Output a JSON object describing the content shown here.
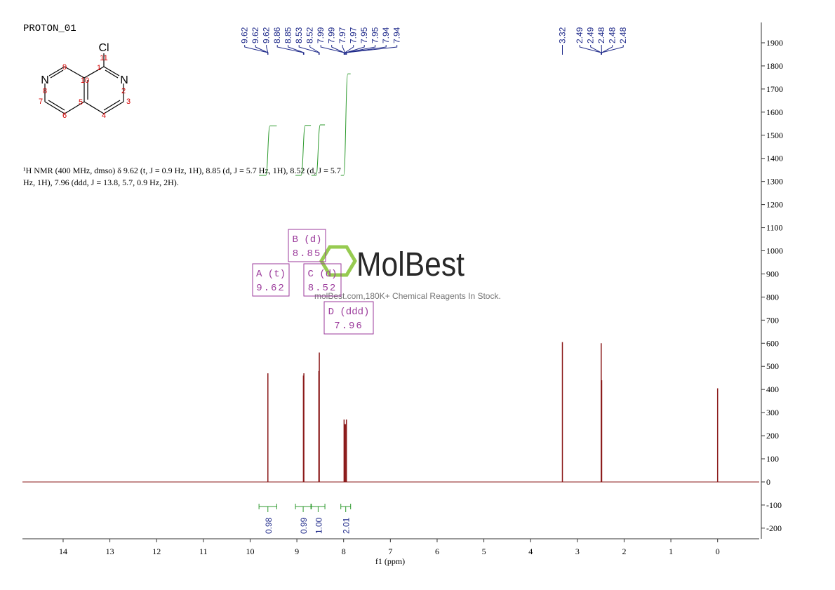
{
  "chart_data": {
    "type": "nmr",
    "title": "PROTON_01",
    "xlabel": "f1 (ppm)",
    "xlim": [
      14.87,
      -0.89
    ],
    "xticks": [
      14,
      13,
      12,
      11,
      10,
      9,
      8,
      7,
      6,
      5,
      4,
      3,
      2,
      1,
      0
    ],
    "ylim": [
      -246,
      1988
    ],
    "yticks": [
      -200,
      -100,
      0,
      100,
      200,
      300,
      400,
      500,
      600,
      700,
      800,
      900,
      1000,
      1100,
      1200,
      1300,
      1400,
      1500,
      1600,
      1700,
      1800,
      1900
    ],
    "spectrum": {
      "color": "#8b1a1a",
      "x": [
        9.62,
        8.86,
        8.85,
        8.53,
        8.52,
        7.99,
        7.97,
        7.95,
        7.94,
        3.32,
        2.49,
        2.48,
        0.0
      ],
      "values": [
        470,
        460,
        470,
        480,
        560,
        270,
        250,
        250,
        270,
        605,
        600,
        440,
        405
      ]
    },
    "peak_picks": [
      9.62,
      9.62,
      9.62,
      8.86,
      8.85,
      8.53,
      8.52,
      7.99,
      7.99,
      7.97,
      7.97,
      7.95,
      7.95,
      7.94,
      7.94,
      3.32,
      2.49,
      2.49,
      2.48,
      2.48,
      2.48
    ],
    "peak_pick_color": "#1f2a8a",
    "integrals": {
      "color": "#2e9a2e",
      "ranges": [
        [
          9.81,
          9.43
        ],
        [
          9.03,
          8.7
        ],
        [
          8.69,
          8.4
        ],
        [
          8.06,
          7.85
        ]
      ],
      "values": [
        0.98,
        0.99,
        1,
        2.01
      ],
      "value_labels": [
        "0.98",
        "0.99",
        "1.00",
        "2.01"
      ]
    },
    "multiplets": [
      {
        "label": "A (t)",
        "shift": 9.62
      },
      {
        "label": "B (d)",
        "shift": 8.85
      },
      {
        "label": "C (d)",
        "shift": 8.52
      },
      {
        "label": "D (ddd)",
        "shift": 7.96
      }
    ],
    "multiplet_color": "#9b3a9b",
    "description": [
      "¹H NMR (400 MHz, dmso) δ 9.62 (t, J = 0.9 Hz, 1H), 8.85 (d, J = 5.7 Hz, 1H), 8.52 (d, J = 5.7",
      "Hz, 1H), 7.96 (ddd, J = 13.8, 5.7, 0.9 Hz, 2H)."
    ],
    "structure": {
      "atoms": [
        "Cl",
        "N",
        "N"
      ],
      "atom_numbers": [
        1,
        2,
        3,
        4,
        5,
        6,
        7,
        8,
        9,
        10,
        11
      ]
    },
    "watermark": {
      "brand": "MolBest",
      "tagline": "molBest.com,180K+ Chemical Reagents In Stock."
    }
  }
}
